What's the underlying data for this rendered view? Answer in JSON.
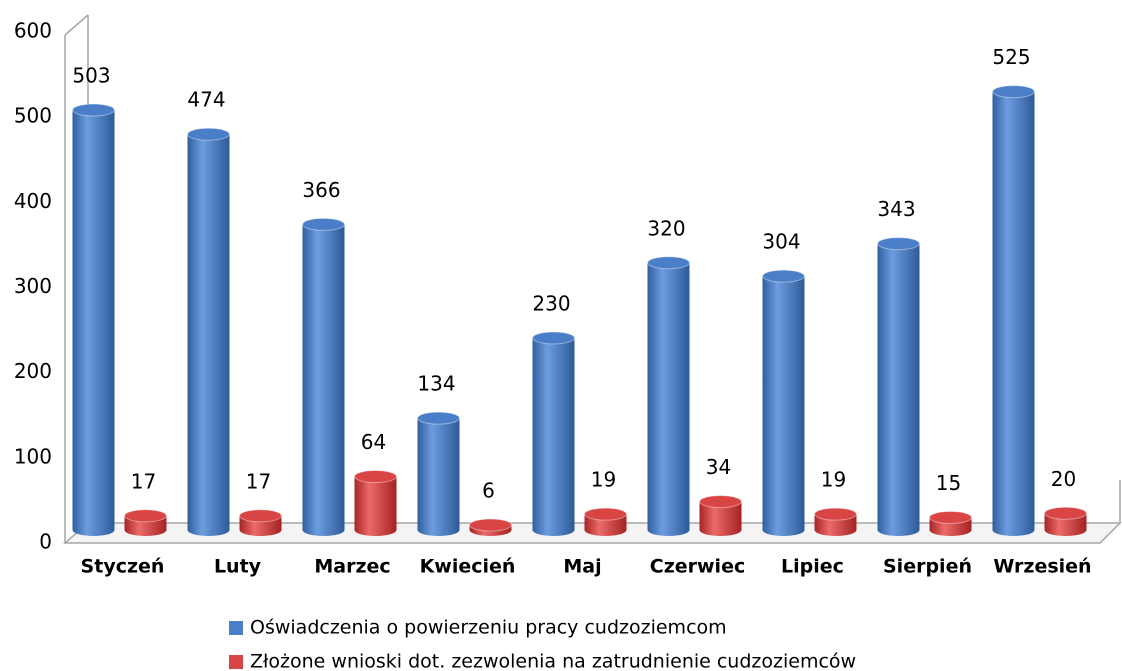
{
  "chart_data": {
    "type": "bar3d",
    "categories": [
      "Styczeń",
      "Luty",
      "Marzec",
      "Kwiecień",
      "Maj",
      "Czerwiec",
      "Lipiec",
      "Sierpień",
      "Wrzesień"
    ],
    "series": [
      {
        "name": "Oświadczenia o powierzeniu pracy cudzoziemcom",
        "color": "#4a7ec8",
        "values": [
          503,
          474,
          366,
          134,
          230,
          320,
          304,
          343,
          525
        ]
      },
      {
        "name": "Złożone wnioski dot. zezwolenia na zatrudnienie cudzoziemców",
        "color": "#d94444",
        "values": [
          17,
          17,
          64,
          6,
          19,
          34,
          19,
          15,
          20
        ]
      }
    ],
    "ylim": [
      0,
      600
    ],
    "yticks": [
      0,
      100,
      200,
      300,
      400,
      500,
      600
    ]
  }
}
